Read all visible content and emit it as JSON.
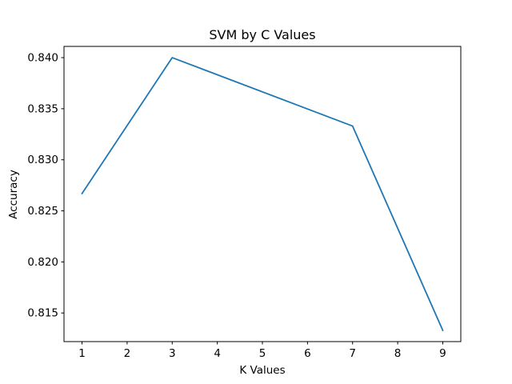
{
  "chart_data": {
    "type": "line",
    "title": "SVM by C Values",
    "xlabel": "K Values",
    "ylabel": "Accuracy",
    "x": [
      1,
      3,
      7,
      9
    ],
    "series": [
      {
        "values": [
          0.8267,
          0.84,
          0.8333,
          0.8133
        ]
      }
    ],
    "xlim": [
      0.6,
      9.4
    ],
    "ylim": [
      0.8122,
      0.8411
    ],
    "xticks": [
      1,
      2,
      3,
      4,
      5,
      6,
      7,
      8,
      9
    ],
    "xtick_labels": [
      "1",
      "2",
      "3",
      "4",
      "5",
      "6",
      "7",
      "8",
      "9"
    ],
    "yticks": [
      0.815,
      0.82,
      0.825,
      0.83,
      0.835,
      0.84
    ],
    "ytick_labels": [
      "0.815",
      "0.820",
      "0.825",
      "0.830",
      "0.835",
      "0.840"
    ],
    "grid": false,
    "legend": "none",
    "line_color": "#1f77b4"
  }
}
